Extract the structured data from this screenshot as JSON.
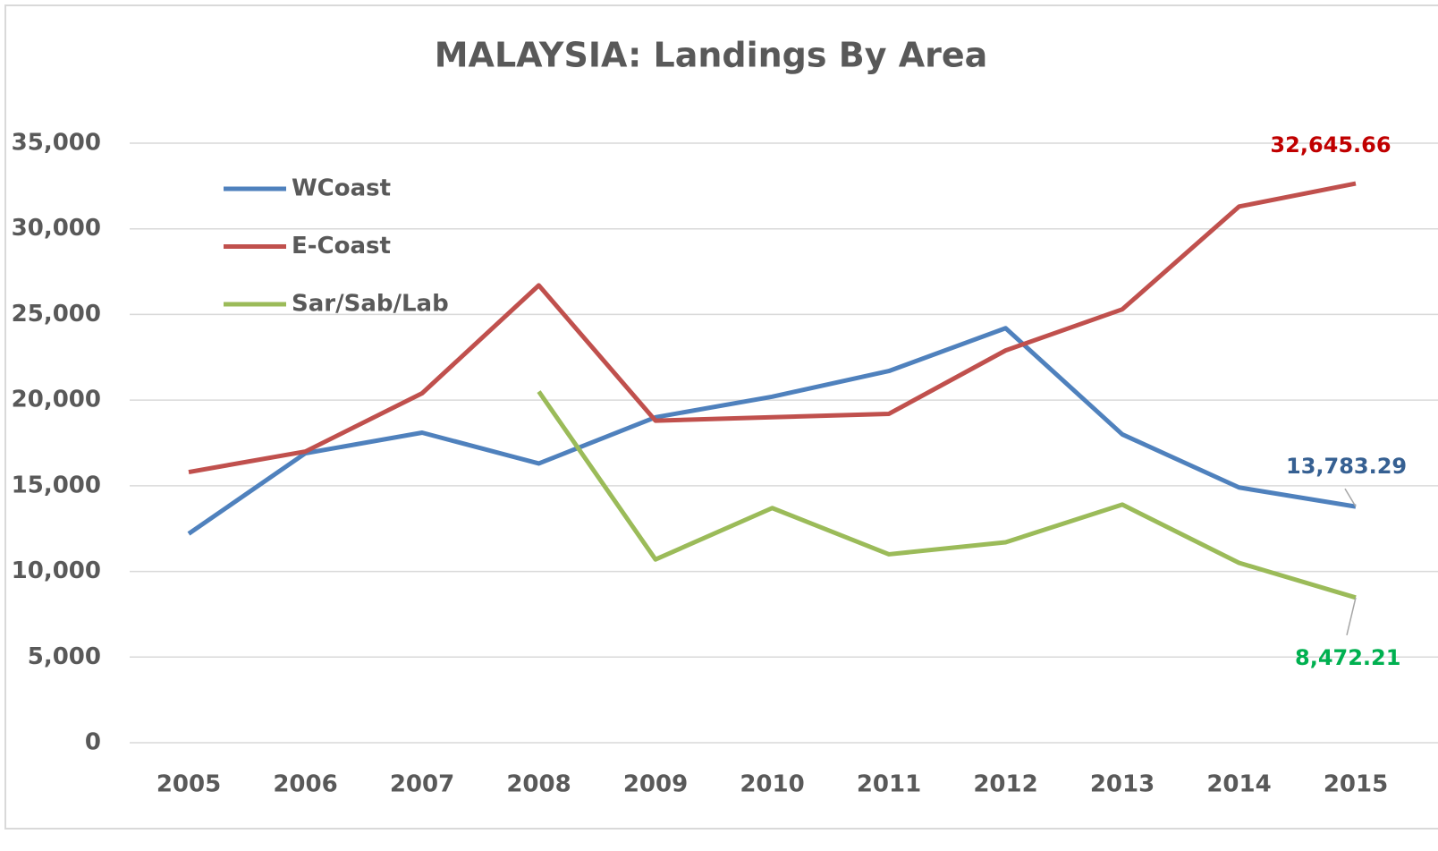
{
  "chart_data": {
    "type": "line",
    "title": "MALAYSIA: Landings By Area",
    "categories": [
      "2005",
      "2006",
      "2007",
      "2008",
      "2009",
      "2010",
      "2011",
      "2012",
      "2013",
      "2014",
      "2015"
    ],
    "series": [
      {
        "name": "WCoast",
        "color": "#4f81bd",
        "label_color": "#366092",
        "values": [
          12200,
          16900,
          18100,
          16300,
          19000,
          20200,
          21700,
          24200,
          18000,
          14900,
          13783.29
        ],
        "value_labels": [
          null,
          null,
          null,
          null,
          null,
          null,
          null,
          null,
          null,
          null,
          "13,783.29"
        ]
      },
      {
        "name": "E-Coast",
        "color": "#c0504d",
        "label_color": "#c00000",
        "values": [
          15800,
          17000,
          20400,
          26700,
          18800,
          19000,
          19200,
          22900,
          25300,
          31300,
          32645.66
        ],
        "value_labels": [
          null,
          null,
          null,
          null,
          null,
          null,
          null,
          null,
          null,
          null,
          "32,645.66"
        ]
      },
      {
        "name": "Sar/Sab/Lab",
        "color": "#9bbb59",
        "label_color": "#00b050",
        "values": [
          null,
          null,
          null,
          20500,
          10700,
          13700,
          11000,
          11700,
          13900,
          10500,
          8472.21
        ],
        "value_labels": [
          null,
          null,
          null,
          null,
          null,
          null,
          null,
          null,
          null,
          null,
          "8,472.21"
        ]
      }
    ],
    "ylim": [
      0,
      35000
    ],
    "yticks": [
      0,
      {
        "value": 5000,
        "label": "5,000"
      },
      {
        "value": 10000,
        "label": "10,000"
      },
      {
        "value": 15000,
        "label": "15,000"
      },
      {
        "value": 20000,
        "label": "20,000"
      },
      {
        "value": 25000,
        "label": "25,000"
      },
      {
        "value": 30000,
        "label": "30,000"
      },
      {
        "value": 35000,
        "label": "35,000"
      }
    ],
    "grid": true,
    "legend": "top-left"
  }
}
